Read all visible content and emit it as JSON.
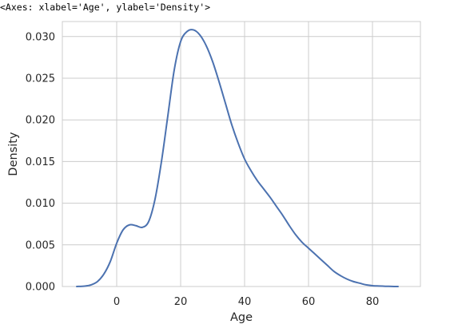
{
  "output_repr": "<Axes: xlabel='Age', ylabel='Density'>",
  "chart_data": {
    "type": "line",
    "kind": "kde",
    "title": "",
    "xlabel": "Age",
    "ylabel": "Density",
    "xlim": [
      -17,
      95
    ],
    "ylim": [
      0,
      0.0318
    ],
    "xticks": [
      0,
      20,
      40,
      60,
      80
    ],
    "xtick_labels": [
      "0",
      "20",
      "40",
      "60",
      "80"
    ],
    "yticks": [
      0.0,
      0.005,
      0.01,
      0.015,
      0.02,
      0.025,
      0.03
    ],
    "ytick_labels": [
      "0.000",
      "0.005",
      "0.010",
      "0.015",
      "0.020",
      "0.025",
      "0.030"
    ],
    "grid": true,
    "series": [
      {
        "color": "#4c72b0",
        "x": [
          -12.5,
          -10,
          -8,
          -6,
          -4,
          -2,
          0,
          2,
          4,
          6,
          8,
          10,
          12,
          14,
          16,
          18,
          20,
          22,
          24,
          26,
          28,
          30,
          32,
          34,
          36,
          38,
          40,
          42,
          44,
          46,
          48,
          50,
          52,
          54,
          56,
          58,
          60,
          62,
          64,
          66,
          68,
          70,
          72,
          74,
          76,
          78,
          80,
          82,
          84,
          86,
          88
        ],
        "y": [
          0.0,
          5e-05,
          0.0002,
          0.0006,
          0.0015,
          0.003,
          0.0052,
          0.0068,
          0.0074,
          0.0073,
          0.0071,
          0.0078,
          0.0105,
          0.015,
          0.0205,
          0.026,
          0.0294,
          0.0306,
          0.0308,
          0.0302,
          0.0289,
          0.027,
          0.0246,
          0.022,
          0.0194,
          0.0172,
          0.0153,
          0.0139,
          0.0127,
          0.0117,
          0.0107,
          0.0096,
          0.0085,
          0.0073,
          0.0062,
          0.0053,
          0.0046,
          0.0039,
          0.0032,
          0.0025,
          0.0018,
          0.0013,
          0.0009,
          0.0006,
          0.0004,
          0.0002,
          0.0001,
          6e-05,
          3e-05,
          1e-05,
          0.0
        ]
      }
    ]
  }
}
